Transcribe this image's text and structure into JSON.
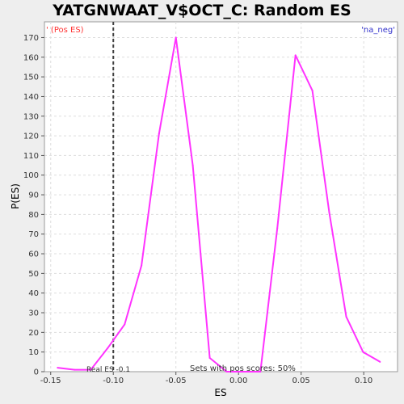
{
  "chart_data": {
    "type": "line",
    "title": "YATGNWAAT_V$OCT_C: Random ES distribution",
    "xlabel": "ES",
    "ylabel": "P(ES)",
    "xlim": [
      -0.155,
      0.127
    ],
    "ylim": [
      0,
      178
    ],
    "x_ticks": [
      -0.15,
      -0.1,
      -0.05,
      0.0,
      0.05,
      0.1
    ],
    "x_tick_labels": [
      "-0.15",
      "-0.10",
      "-0.05",
      "0.00",
      "0.05",
      "0.10"
    ],
    "y_ticks": [
      0,
      10,
      20,
      30,
      40,
      50,
      60,
      70,
      80,
      90,
      100,
      110,
      120,
      130,
      140,
      150,
      160,
      170
    ],
    "grid": true,
    "series": [
      {
        "color": "#ff33ff",
        "points": [
          [
            -0.1445,
            2
          ],
          [
            -0.131,
            1
          ],
          [
            -0.118,
            1
          ],
          [
            -0.1045,
            12
          ],
          [
            -0.091,
            24
          ],
          [
            -0.0775,
            54
          ],
          [
            -0.0635,
            121
          ],
          [
            -0.05,
            170
          ],
          [
            -0.0365,
            105
          ],
          [
            -0.023,
            7
          ],
          [
            -0.0095,
            0
          ],
          [
            0.004,
            0
          ],
          [
            0.0175,
            0
          ],
          [
            0.031,
            73
          ],
          [
            0.0455,
            161
          ],
          [
            0.059,
            143
          ],
          [
            0.0725,
            81
          ],
          [
            0.086,
            28
          ],
          [
            0.0995,
            10
          ],
          [
            0.113,
            5
          ]
        ]
      }
    ],
    "real_es": {
      "value": -0.1,
      "label": "Real ES -0.1",
      "line_color": "#404040"
    },
    "annotations": {
      "pos_label": "' (Pos ES)",
      "pos_color": "#ff3333",
      "neg_label": "'na_neg'",
      "neg_color": "#3333cc",
      "footer": "Sets with pos scores: 50%"
    }
  }
}
